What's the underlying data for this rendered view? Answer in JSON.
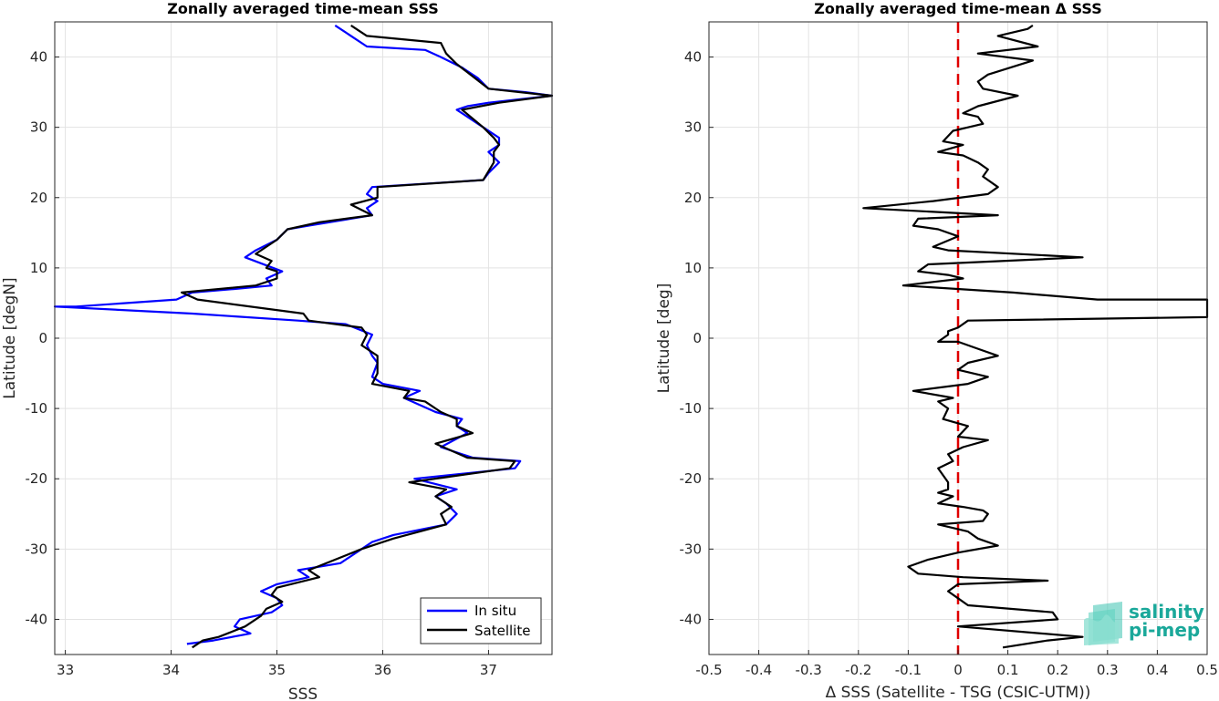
{
  "chart_data": [
    {
      "type": "line",
      "title": "Zonally averaged time-mean SSS",
      "xlabel": "SSS",
      "ylabel": "Latitude [degN]",
      "xlim": [
        32.9,
        37.6
      ],
      "ylim": [
        -45,
        45
      ],
      "xticks": [
        33,
        34,
        35,
        36,
        37
      ],
      "yticks": [
        -40,
        -30,
        -20,
        -10,
        0,
        10,
        20,
        30,
        40
      ],
      "grid": true,
      "legend": "bottom-right",
      "series": [
        {
          "name": "In situ",
          "color": "#0000ff",
          "points": [
            [
              35.55,
              44.5
            ],
            [
              35.65,
              43.5
            ],
            [
              35.75,
              42.5
            ],
            [
              35.85,
              41.5
            ],
            [
              36.4,
              41.0
            ],
            [
              36.55,
              40.0
            ],
            [
              36.75,
              38.5
            ],
            [
              36.9,
              37.0
            ],
            [
              37.0,
              35.5
            ],
            [
              37.35,
              35.0
            ],
            [
              37.6,
              34.5
            ],
            [
              37.0,
              33.5
            ],
            [
              36.8,
              33.0
            ],
            [
              36.7,
              32.5
            ],
            [
              36.9,
              30.5
            ],
            [
              37.1,
              28.5
            ],
            [
              37.1,
              27.5
            ],
            [
              37.0,
              26.5
            ],
            [
              37.1,
              25.0
            ],
            [
              37.0,
              23.5
            ],
            [
              36.95,
              22.5
            ],
            [
              35.9,
              21.5
            ],
            [
              35.85,
              20.5
            ],
            [
              35.95,
              19.5
            ],
            [
              35.85,
              18.5
            ],
            [
              35.9,
              17.5
            ],
            [
              35.3,
              16.0
            ],
            [
              35.1,
              15.5
            ],
            [
              35.0,
              14.0
            ],
            [
              34.8,
              12.5
            ],
            [
              34.7,
              11.5
            ],
            [
              35.05,
              9.5
            ],
            [
              34.9,
              8.5
            ],
            [
              34.95,
              7.5
            ],
            [
              34.6,
              7.0
            ],
            [
              34.2,
              6.5
            ],
            [
              34.05,
              5.5
            ],
            [
              33.1,
              4.5
            ],
            [
              32.9,
              4.5
            ],
            [
              34.2,
              3.5
            ],
            [
              35.2,
              2.5
            ],
            [
              35.65,
              2.0
            ],
            [
              35.9,
              0.5
            ],
            [
              35.85,
              -1.0
            ],
            [
              35.9,
              -2.5
            ],
            [
              35.95,
              -3.5
            ],
            [
              35.9,
              -5.5
            ],
            [
              36.0,
              -6.5
            ],
            [
              36.35,
              -7.5
            ],
            [
              36.2,
              -8.5
            ],
            [
              36.5,
              -10.5
            ],
            [
              36.75,
              -11.5
            ],
            [
              36.7,
              -12.5
            ],
            [
              36.8,
              -13.5
            ],
            [
              36.55,
              -15.5
            ],
            [
              36.85,
              -17.0
            ],
            [
              37.3,
              -17.5
            ],
            [
              37.25,
              -18.5
            ],
            [
              36.3,
              -20.0
            ],
            [
              36.7,
              -21.5
            ],
            [
              36.5,
              -22.5
            ],
            [
              36.6,
              -23.5
            ],
            [
              36.7,
              -25.0
            ],
            [
              36.6,
              -26.5
            ],
            [
              36.1,
              -28.0
            ],
            [
              35.9,
              -29.0
            ],
            [
              35.8,
              -30.0
            ],
            [
              35.6,
              -32.0
            ],
            [
              35.2,
              -33.0
            ],
            [
              35.3,
              -34.0
            ],
            [
              35.0,
              -35.0
            ],
            [
              34.85,
              -36.0
            ],
            [
              35.0,
              -37.0
            ],
            [
              35.05,
              -38.0
            ],
            [
              34.95,
              -39.0
            ],
            [
              34.65,
              -40.0
            ],
            [
              34.6,
              -41.0
            ],
            [
              34.75,
              -42.0
            ],
            [
              34.4,
              -43.0
            ],
            [
              34.15,
              -43.5
            ]
          ]
        },
        {
          "name": "Satellite",
          "color": "#000000",
          "points": [
            [
              35.7,
              44.5
            ],
            [
              35.85,
              43.0
            ],
            [
              36.55,
              42.0
            ],
            [
              36.6,
              40.5
            ],
            [
              36.7,
              39.0
            ],
            [
              37.0,
              35.5
            ],
            [
              37.6,
              34.5
            ],
            [
              37.1,
              33.5
            ],
            [
              36.75,
              32.5
            ],
            [
              36.95,
              30.0
            ],
            [
              37.05,
              28.5
            ],
            [
              37.1,
              27.5
            ],
            [
              37.05,
              26.5
            ],
            [
              37.05,
              25.0
            ],
            [
              36.95,
              22.5
            ],
            [
              35.95,
              21.5
            ],
            [
              35.95,
              20.0
            ],
            [
              35.7,
              19.0
            ],
            [
              35.9,
              17.5
            ],
            [
              35.4,
              16.5
            ],
            [
              35.1,
              15.5
            ],
            [
              35.0,
              14.0
            ],
            [
              34.8,
              12.0
            ],
            [
              34.95,
              11.0
            ],
            [
              34.9,
              10.0
            ],
            [
              35.0,
              9.5
            ],
            [
              35.0,
              8.5
            ],
            [
              34.8,
              7.5
            ],
            [
              34.1,
              6.5
            ],
            [
              34.25,
              5.5
            ],
            [
              35.25,
              3.5
            ],
            [
              35.3,
              2.5
            ],
            [
              35.8,
              1.5
            ],
            [
              35.85,
              0.5
            ],
            [
              35.8,
              -1.0
            ],
            [
              35.95,
              -2.5
            ],
            [
              35.95,
              -4.0
            ],
            [
              35.95,
              -5.0
            ],
            [
              35.9,
              -6.5
            ],
            [
              36.25,
              -7.5
            ],
            [
              36.2,
              -8.5
            ],
            [
              36.4,
              -9.0
            ],
            [
              36.55,
              -10.5
            ],
            [
              36.7,
              -11.5
            ],
            [
              36.7,
              -12.5
            ],
            [
              36.85,
              -13.5
            ],
            [
              36.5,
              -15.0
            ],
            [
              36.8,
              -17.0
            ],
            [
              37.25,
              -17.5
            ],
            [
              37.2,
              -18.5
            ],
            [
              36.25,
              -20.5
            ],
            [
              36.6,
              -21.5
            ],
            [
              36.5,
              -22.5
            ],
            [
              36.65,
              -24.0
            ],
            [
              36.55,
              -25.0
            ],
            [
              36.6,
              -26.5
            ],
            [
              36.1,
              -28.5
            ],
            [
              35.8,
              -30.0
            ],
            [
              35.3,
              -33.0
            ],
            [
              35.4,
              -34.0
            ],
            [
              35.0,
              -35.5
            ],
            [
              34.95,
              -36.5
            ],
            [
              35.05,
              -37.5
            ],
            [
              34.9,
              -38.5
            ],
            [
              34.85,
              -39.5
            ],
            [
              34.7,
              -41.0
            ],
            [
              34.45,
              -42.5
            ],
            [
              34.3,
              -43.0
            ],
            [
              34.2,
              -44.0
            ]
          ]
        }
      ]
    },
    {
      "type": "line",
      "title": "Zonally averaged time-mean Δ SSS",
      "xlabel": "Δ SSS (Satellite - TSG (CSIC-UTM))",
      "ylabel": "Latitude [deg]",
      "xlim": [
        -0.5,
        0.5
      ],
      "ylim": [
        -45,
        45
      ],
      "xticks": [
        -0.5,
        -0.4,
        -0.3,
        -0.2,
        -0.1,
        0,
        0.1,
        0.2,
        0.3,
        0.4,
        0.5
      ],
      "xticklabels": [
        "-0.5",
        "-0.4",
        "-0.3",
        "-0.2",
        "-0.1",
        "0",
        "0.1",
        "0.2",
        "0.3",
        "0.4",
        "0.5"
      ],
      "yticks": [
        -40,
        -30,
        -20,
        -10,
        0,
        10,
        20,
        30,
        40
      ],
      "grid": true,
      "reference_line": {
        "x": 0,
        "color": "#e00000",
        "style": "dashed"
      },
      "series": [
        {
          "name": "",
          "color": "#000000",
          "points": [
            [
              0.15,
              44.5
            ],
            [
              0.14,
              44.0
            ],
            [
              0.08,
              43.0
            ],
            [
              0.16,
              41.5
            ],
            [
              0.04,
              40.5
            ],
            [
              0.15,
              39.5
            ],
            [
              0.06,
              37.5
            ],
            [
              0.04,
              36.5
            ],
            [
              0.05,
              35.5
            ],
            [
              0.12,
              34.5
            ],
            [
              0.04,
              33.0
            ],
            [
              0.01,
              32.0
            ],
            [
              0.04,
              31.5
            ],
            [
              0.05,
              30.5
            ],
            [
              0.02,
              30.0
            ],
            [
              -0.01,
              29.5
            ],
            [
              -0.03,
              28.0
            ],
            [
              0.01,
              27.5
            ],
            [
              -0.04,
              26.5
            ],
            [
              0.01,
              26.0
            ],
            [
              0.04,
              25.0
            ],
            [
              0.06,
              24.0
            ],
            [
              0.05,
              23.0
            ],
            [
              0.08,
              21.5
            ],
            [
              0.06,
              20.5
            ],
            [
              -0.05,
              19.5
            ],
            [
              -0.19,
              18.5
            ],
            [
              0.08,
              17.5
            ],
            [
              -0.08,
              17.0
            ],
            [
              -0.09,
              16.0
            ],
            [
              -0.04,
              15.5
            ],
            [
              0.0,
              14.5
            ],
            [
              -0.05,
              13.0
            ],
            [
              -0.02,
              12.5
            ],
            [
              0.25,
              11.5
            ],
            [
              -0.06,
              10.5
            ],
            [
              -0.08,
              9.5
            ],
            [
              -0.02,
              9.0
            ],
            [
              0.01,
              8.5
            ],
            [
              -0.05,
              8.0
            ],
            [
              -0.11,
              7.5
            ],
            [
              0.11,
              6.5
            ],
            [
              0.28,
              5.5
            ],
            [
              0.5,
              5.5
            ],
            [
              0.5,
              3.0
            ],
            [
              0.02,
              2.5
            ],
            [
              0.0,
              1.5
            ],
            [
              -0.02,
              1.0
            ],
            [
              -0.02,
              0.5
            ],
            [
              -0.04,
              -0.5
            ],
            [
              0.0,
              -0.5
            ],
            [
              0.04,
              -1.5
            ],
            [
              0.08,
              -2.5
            ],
            [
              0.02,
              -3.5
            ],
            [
              0.0,
              -4.5
            ],
            [
              0.06,
              -5.5
            ],
            [
              0.02,
              -6.5
            ],
            [
              -0.09,
              -7.5
            ],
            [
              -0.01,
              -8.5
            ],
            [
              -0.04,
              -9.0
            ],
            [
              -0.02,
              -10.0
            ],
            [
              -0.03,
              -11.5
            ],
            [
              0.02,
              -12.5
            ],
            [
              0.0,
              -14.0
            ],
            [
              0.06,
              -14.5
            ],
            [
              0.01,
              -15.5
            ],
            [
              -0.02,
              -16.5
            ],
            [
              -0.01,
              -17.5
            ],
            [
              -0.04,
              -18.5
            ],
            [
              -0.03,
              -19.5
            ],
            [
              -0.02,
              -20.5
            ],
            [
              -0.02,
              -21.5
            ],
            [
              -0.04,
              -22.0
            ],
            [
              -0.01,
              -22.5
            ],
            [
              -0.04,
              -23.5
            ],
            [
              0.01,
              -24.0
            ],
            [
              0.05,
              -24.5
            ],
            [
              0.06,
              -25.0
            ],
            [
              0.05,
              -26.0
            ],
            [
              -0.04,
              -26.5
            ],
            [
              0.02,
              -27.5
            ],
            [
              0.04,
              -28.5
            ],
            [
              0.08,
              -29.5
            ],
            [
              0.0,
              -30.5
            ],
            [
              -0.06,
              -31.5
            ],
            [
              -0.1,
              -32.5
            ],
            [
              -0.08,
              -33.5
            ],
            [
              0.01,
              -34.0
            ],
            [
              0.18,
              -34.5
            ],
            [
              0.0,
              -35.0
            ],
            [
              -0.02,
              -36.0
            ],
            [
              0.0,
              -37.0
            ],
            [
              0.02,
              -38.0
            ],
            [
              0.19,
              -39.0
            ],
            [
              0.2,
              -40.0
            ],
            [
              0.0,
              -41.0
            ],
            [
              0.25,
              -42.5
            ],
            [
              0.18,
              -43.0
            ],
            [
              0.09,
              -44.0
            ]
          ]
        }
      ]
    }
  ],
  "legend": {
    "items": [
      {
        "label": "In situ",
        "color": "#0000ff"
      },
      {
        "label": "Satellite",
        "color": "#000000"
      }
    ]
  },
  "logo": {
    "line1": "salinity",
    "line2": "pi-mep"
  }
}
